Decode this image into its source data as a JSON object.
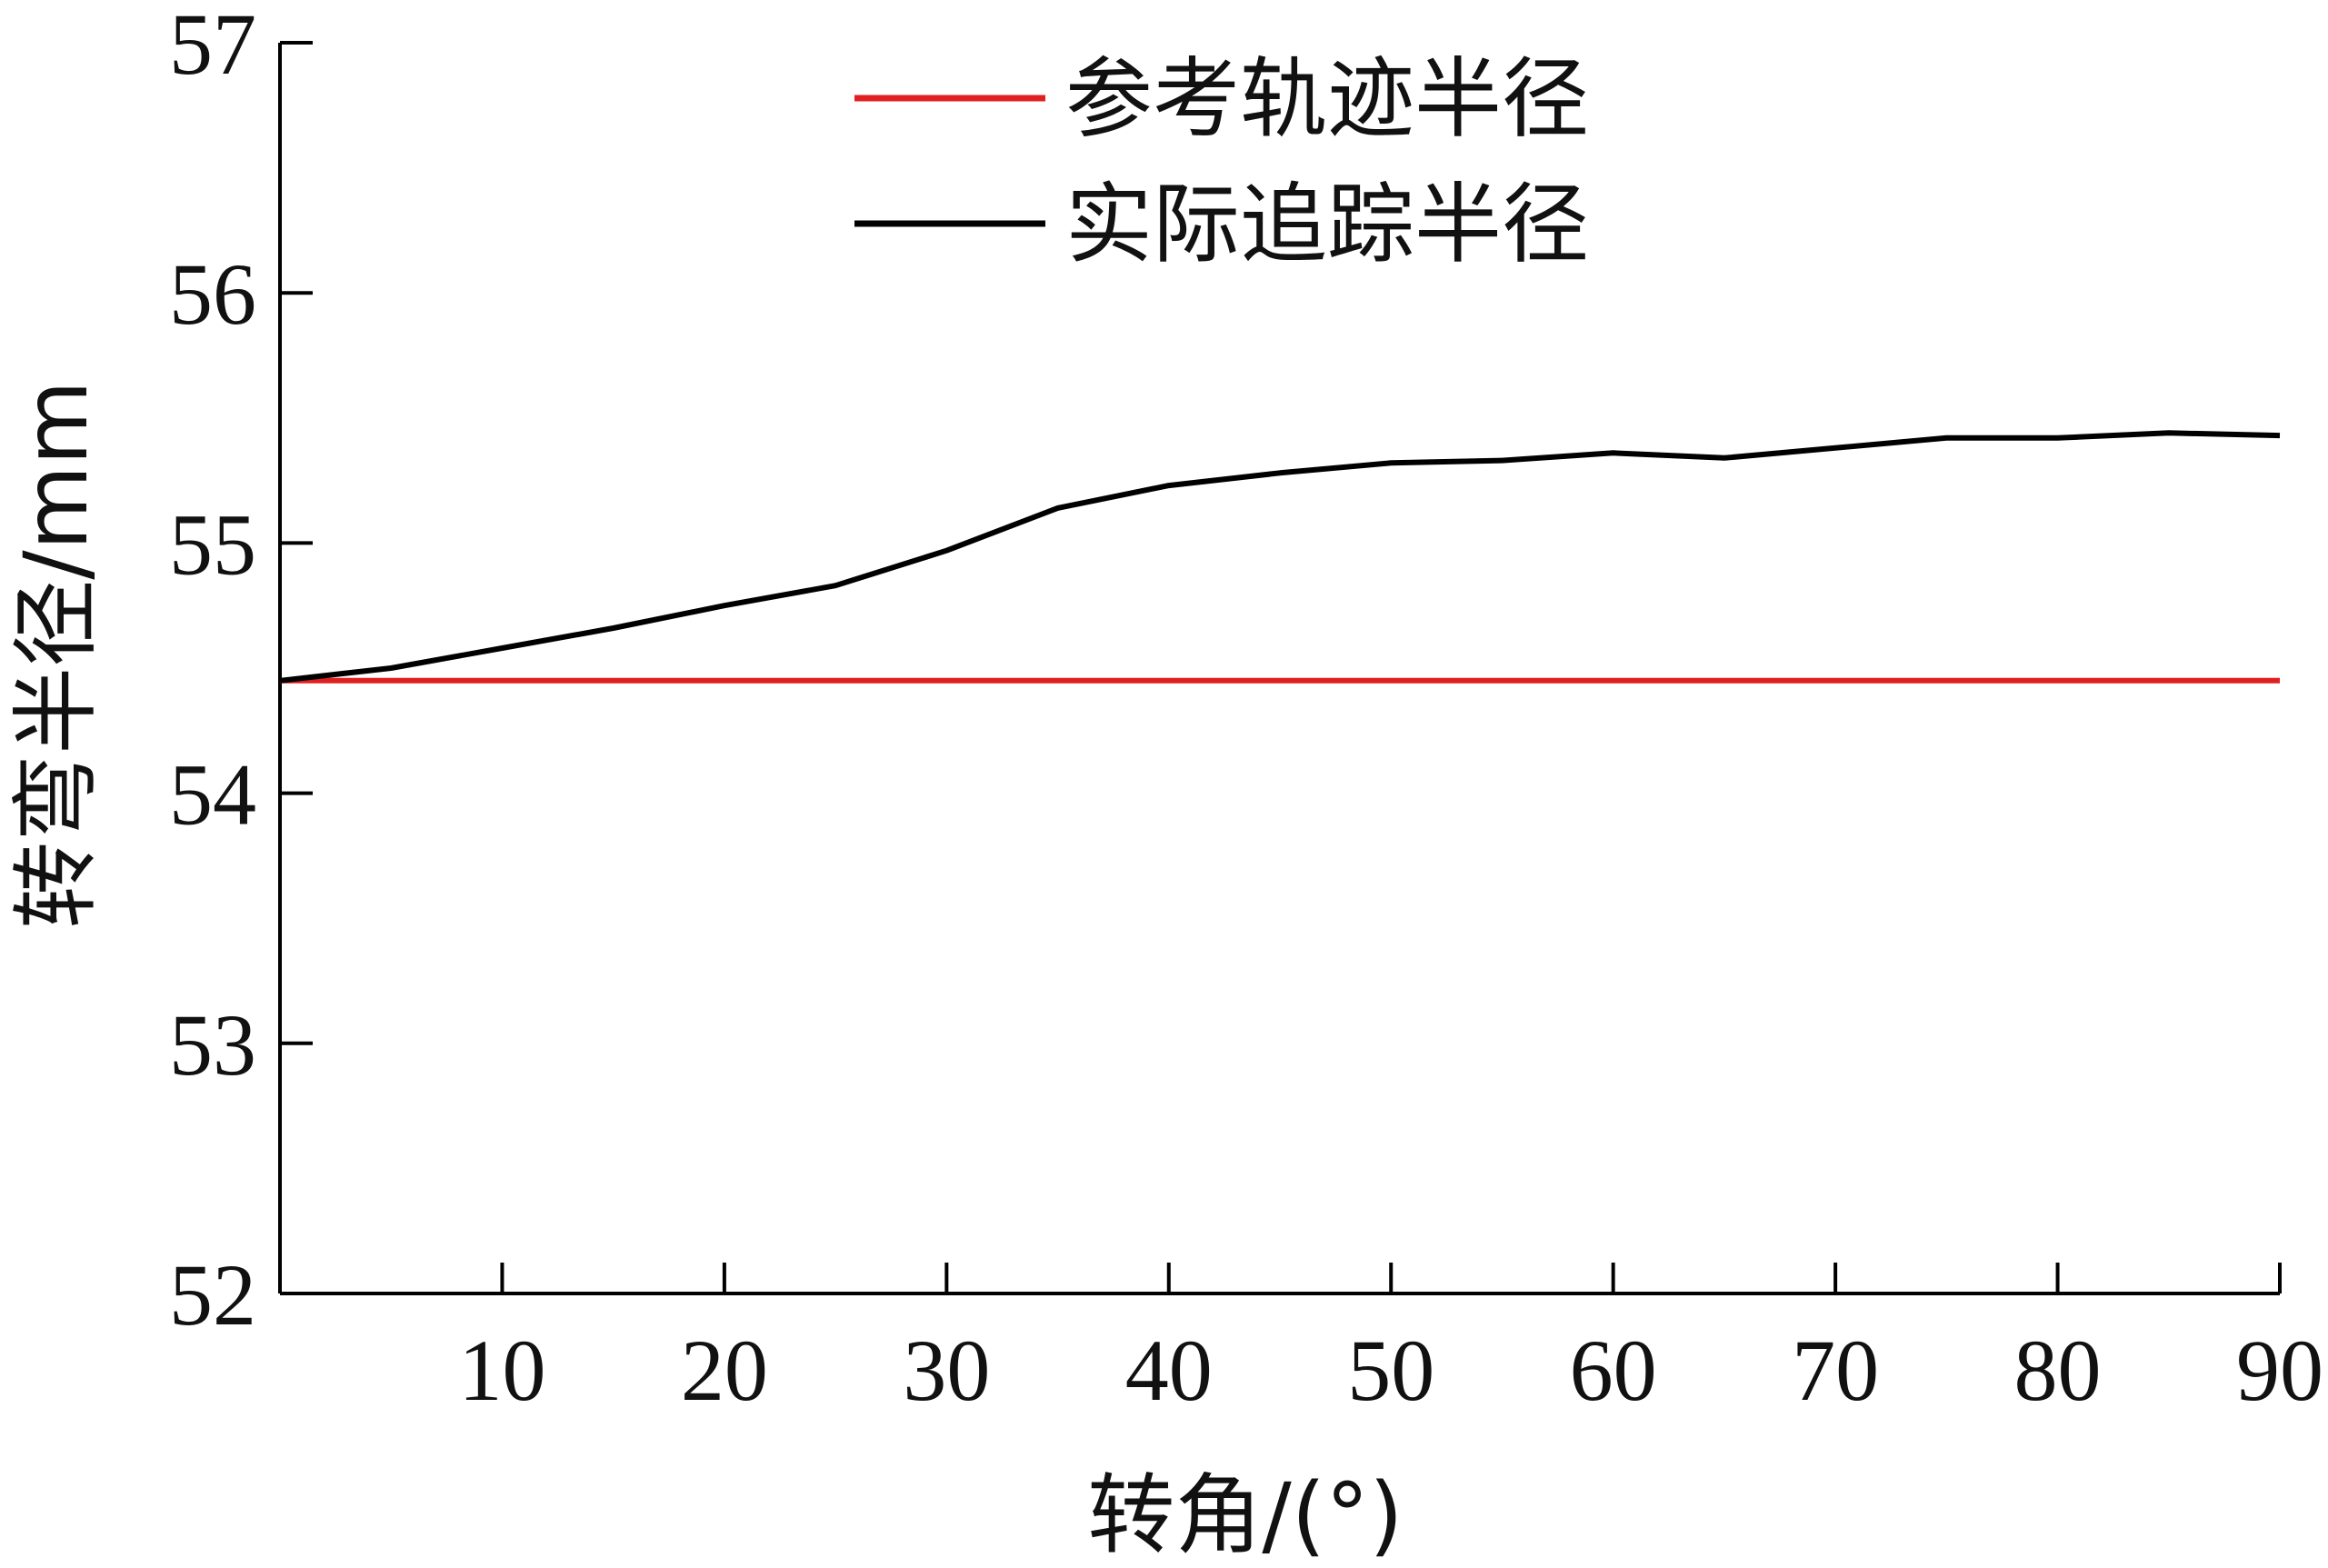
{
  "chart_data": {
    "type": "line",
    "title": "",
    "xlabel": "转角/(°)",
    "ylabel": "转弯半径/mm",
    "xlim": [
      0,
      90
    ],
    "ylim": [
      52,
      57
    ],
    "xticks": [
      10,
      20,
      30,
      40,
      50,
      60,
      70,
      80,
      90
    ],
    "yticks": [
      52,
      53,
      54,
      55,
      56,
      57
    ],
    "grid": false,
    "legend_position": "top-center",
    "series": [
      {
        "name": "参考轨迹半径",
        "color": "#e02020",
        "x": [
          0,
          90
        ],
        "y": [
          54.45,
          54.45
        ]
      },
      {
        "name": "实际追踪半径",
        "color": "#000000",
        "x": [
          0,
          5,
          10,
          15,
          20,
          25,
          30,
          35,
          40,
          45,
          50,
          55,
          60,
          65,
          70,
          75,
          80,
          85,
          90
        ],
        "y": [
          54.45,
          54.5,
          54.58,
          54.66,
          54.75,
          54.83,
          54.97,
          55.14,
          55.23,
          55.28,
          55.32,
          55.33,
          55.36,
          55.34,
          55.38,
          55.42,
          55.42,
          55.44,
          55.43
        ]
      }
    ]
  }
}
